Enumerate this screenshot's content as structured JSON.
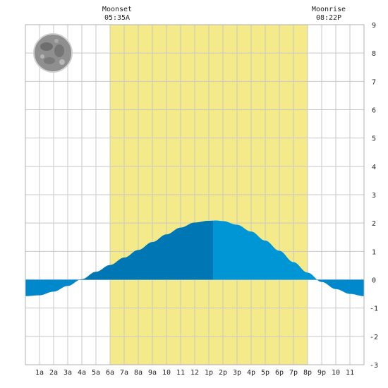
{
  "moonset": {
    "label": "Moonset",
    "time": "05:35A"
  },
  "moonrise": {
    "label": "Moonrise",
    "time": "08:22P"
  },
  "chart_data": {
    "type": "area",
    "title": "",
    "xlabel": "",
    "ylabel": "",
    "xlim": [
      0,
      24
    ],
    "ylim": [
      -3,
      9
    ],
    "x_tick_values": [
      1,
      2,
      3,
      4,
      5,
      6,
      7,
      8,
      9,
      10,
      11,
      12,
      13,
      14,
      15,
      16,
      17,
      18,
      19,
      20,
      21,
      22,
      23
    ],
    "x_tick_labels": [
      "1a",
      "2a",
      "3a",
      "4a",
      "5a",
      "6a",
      "7a",
      "8a",
      "9a",
      "10",
      "11",
      "12",
      "1p",
      "2p",
      "3p",
      "4p",
      "5p",
      "6p",
      "7p",
      "8p",
      "9p",
      "10",
      "11"
    ],
    "y_ticks": [
      -3,
      -2,
      -1,
      0,
      1,
      2,
      3,
      4,
      5,
      6,
      7,
      8,
      9
    ],
    "daylight": {
      "start_hour": 6.0,
      "end_hour": 20.0,
      "color": "#f5ea8a"
    },
    "moonset_hour": 5.58,
    "moonrise_hour": 20.37,
    "split_hour": 13.3,
    "colors": {
      "tide_left_dark": "#0077b5",
      "tide_right": "#0096d6",
      "tide_negative": "#0088cc",
      "grid": "#c8c8c8"
    },
    "series": [
      {
        "x": [
          0,
          1,
          2,
          3,
          4,
          5,
          6,
          7,
          8,
          9,
          10,
          11,
          12,
          13,
          13.5,
          14,
          15,
          16,
          17,
          18,
          19,
          20,
          21,
          22,
          23,
          24
        ],
        "values": [
          -0.58,
          -0.55,
          -0.42,
          -0.22,
          0.02,
          0.28,
          0.52,
          0.78,
          1.05,
          1.33,
          1.6,
          1.84,
          2.02,
          2.08,
          2.09,
          2.07,
          1.94,
          1.7,
          1.38,
          1.02,
          0.62,
          0.25,
          -0.08,
          -0.33,
          -0.5,
          -0.58
        ]
      }
    ]
  }
}
